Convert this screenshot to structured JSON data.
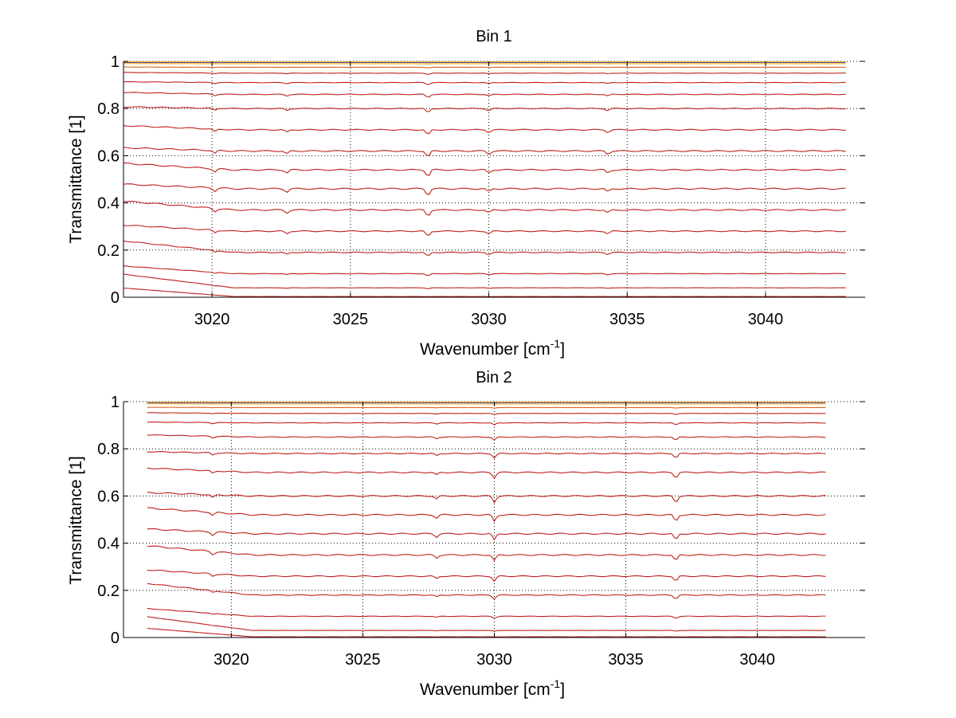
{
  "colors": {
    "background": "#ffffff",
    "axis": "#000000",
    "grid": "#000000",
    "curve_dark": "#c0201a",
    "curve_light": "#f5a623",
    "curve_blue": "#3a4fb0"
  },
  "chart_data": [
    {
      "type": "line",
      "title": "Bin 1",
      "xlabel": "Wavenumber [cm",
      "xlabel_sup": "-1",
      "xlabel_end": "]",
      "ylabel": "Transmittance [1]",
      "xlim": [
        3016.8,
        3043.6
      ],
      "ylim": [
        0,
        1
      ],
      "xticks": [
        "3020",
        "3025",
        "3030",
        "3035",
        "3040"
      ],
      "yticks": [
        "0",
        "0.2",
        "0.4",
        "0.6",
        "0.8",
        "1"
      ],
      "grid": true,
      "x_range": [
        3016.8,
        3042.9
      ],
      "dip_positions": [
        3020.1,
        3022.7,
        3027.8,
        3030.0,
        3034.3
      ],
      "levels": [
        0.003,
        0.04,
        0.1,
        0.19,
        0.28,
        0.37,
        0.46,
        0.54,
        0.62,
        0.71,
        0.8,
        0.86,
        0.91,
        0.95,
        0.975,
        0.99,
        0.995,
        0.998
      ]
    },
    {
      "type": "line",
      "title": "Bin 2",
      "xlabel": "Wavenumber [cm",
      "xlabel_sup": "-1",
      "xlabel_end": "]",
      "ylabel": "Transmittance [1]",
      "xlim": [
        3015.9,
        3044.1
      ],
      "ylim": [
        0,
        1
      ],
      "xticks": [
        "3020",
        "3025",
        "3030",
        "3035",
        "3040"
      ],
      "yticks": [
        "0",
        "0.2",
        "0.4",
        "0.6",
        "0.8",
        "1"
      ],
      "grid": true,
      "x_range": [
        3016.8,
        3042.6
      ],
      "dip_positions": [
        3019.3,
        3027.8,
        3030.0,
        3036.9
      ],
      "levels": [
        0.003,
        0.03,
        0.09,
        0.18,
        0.26,
        0.35,
        0.44,
        0.52,
        0.6,
        0.7,
        0.78,
        0.85,
        0.91,
        0.95,
        0.975,
        0.99,
        0.995,
        0.998
      ]
    }
  ]
}
